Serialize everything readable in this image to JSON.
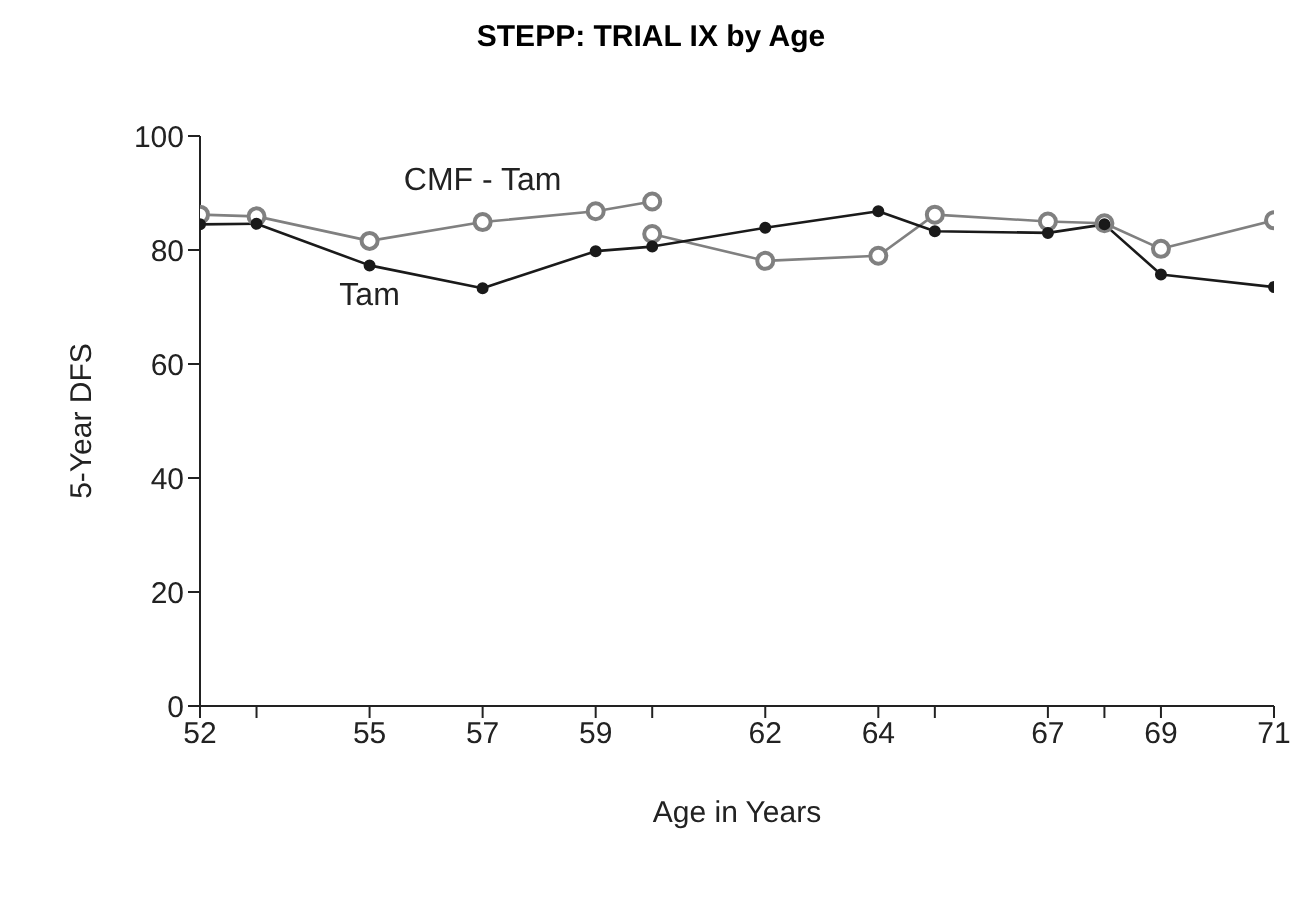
{
  "chart_data": {
    "type": "line",
    "title": "STEPP: TRIAL IX by Age",
    "xlabel": "Age in Years",
    "ylabel": "5-Year DFS",
    "xlim": [
      52,
      71
    ],
    "xticks": [
      52,
      {
        "value": 53,
        "label": null
      },
      55,
      57,
      59,
      {
        "value": 60,
        "label": null
      },
      62,
      64,
      {
        "value": 65,
        "label": null
      },
      67,
      {
        "value": 68,
        "label": null
      },
      69,
      71
    ],
    "ylim": [
      0,
      100
    ],
    "yticks": [
      0,
      20,
      40,
      60,
      80,
      100
    ],
    "marker": "circle",
    "line_style": "solid",
    "series": [
      {
        "name": "CMF - Tam",
        "color": "#808080",
        "x": [
          52,
          53,
          55,
          57,
          59,
          60
        ],
        "values": [
          86.2,
          85.9,
          81.6,
          84.9,
          86.8,
          88.5
        ]
      },
      {
        "color": "#808080",
        "x": [
          60,
          62,
          64,
          65,
          67,
          68,
          69,
          71
        ],
        "values": [
          82.8,
          78.1,
          79,
          86.2,
          85,
          84.7,
          80.2,
          85.2
        ]
      },
      {
        "name": "Tam",
        "color": "#1a1a1a",
        "x": [
          52,
          53,
          55,
          57,
          59,
          60,
          62,
          64,
          65,
          67,
          68,
          69,
          71
        ],
        "values": [
          84.5,
          84.6,
          77.3,
          73.3,
          79.8,
          80.6,
          83.9,
          86.8,
          83.3,
          83,
          84.5,
          75.7,
          73.5
        ]
      }
    ]
  }
}
